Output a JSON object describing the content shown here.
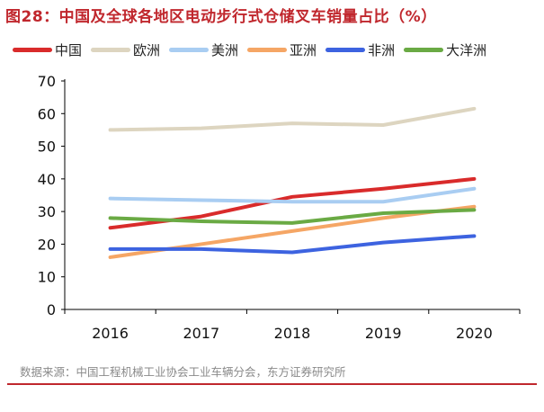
{
  "title": "图28：中国及全球各地区电动步行式仓储叉车销量占比（%）",
  "source": "数据来源：中国工程机械工业协会工业车辆分会，东方证券研究所",
  "chart_data": {
    "type": "line",
    "title": "图28：中国及全球各地区电动步行式仓储叉车销量占比（%）",
    "xlabel": "",
    "ylabel": "",
    "categories": [
      "2016",
      "2017",
      "2018",
      "2019",
      "2020"
    ],
    "ylim": [
      0,
      70
    ],
    "yticks": [
      "0",
      "10",
      "20",
      "30",
      "40",
      "50",
      "60",
      "70"
    ],
    "grid": false,
    "legend_position": "top",
    "series": [
      {
        "name": "中国",
        "color": "#d92b2b",
        "values": [
          25,
          28.5,
          34.5,
          37,
          40
        ]
      },
      {
        "name": "欧洲",
        "color": "#ddd5c0",
        "values": [
          55,
          55.5,
          57,
          56.5,
          61.5
        ]
      },
      {
        "name": "美洲",
        "color": "#a9cdf2",
        "values": [
          34,
          33.5,
          33,
          33,
          37
        ]
      },
      {
        "name": "亚洲",
        "color": "#f5a665",
        "values": [
          16,
          20,
          24,
          28,
          31.5
        ]
      },
      {
        "name": "非洲",
        "color": "#3d63e0",
        "values": [
          18.5,
          18.5,
          17.5,
          20.5,
          22.5
        ]
      },
      {
        "name": "大洋洲",
        "color": "#6aaa44",
        "values": [
          28,
          27,
          26.5,
          29.5,
          30.5
        ]
      }
    ]
  }
}
